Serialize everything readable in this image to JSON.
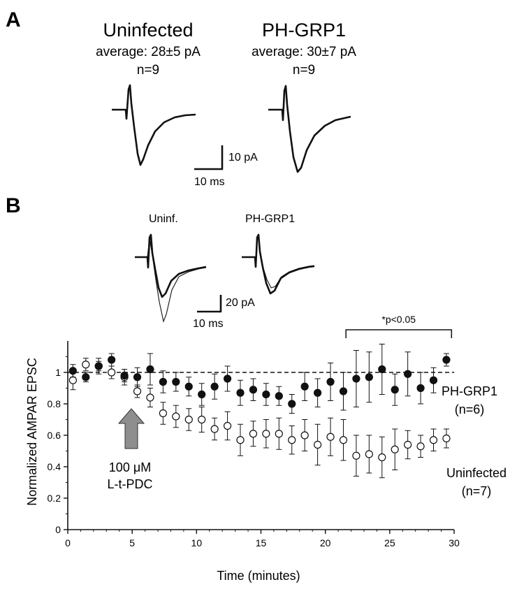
{
  "panel_a": {
    "letter": "A",
    "groups": [
      {
        "title": "Uninfected",
        "average": "average: 28±5 pA",
        "n": "n=9"
      },
      {
        "title": "PH-GRP1",
        "average": "average: 30±7 pA",
        "n": "n=9"
      }
    ],
    "scalebar": {
      "y_label": "10 pA",
      "x_label": "10 ms"
    }
  },
  "panel_b": {
    "letter": "B",
    "trace_labels": [
      "Uninf.",
      "PH-GRP1"
    ],
    "scalebar": {
      "y_label": "20 pA",
      "x_label": "10 ms"
    },
    "drug_label_line1": "100 μM",
    "drug_label_line2": "L-t-PDC",
    "significance": "*p<0.05"
  },
  "chart_data": {
    "type": "scatter",
    "xlabel": "Time (minutes)",
    "ylabel": "Normalized AMPAR EPSC",
    "xlim": [
      0,
      30
    ],
    "ylim": [
      0,
      1.2
    ],
    "xticks": [
      "0",
      "5",
      "10",
      "15",
      "20",
      "25",
      "30"
    ],
    "yticks": [
      "0",
      "0.2",
      "0.4",
      "0.6",
      "0.8",
      "1"
    ],
    "reference_line": 1,
    "significance_range": [
      21.6,
      29.8
    ],
    "series": [
      {
        "name": "PH-GRP1",
        "label_line1": "PH-GRP1",
        "label_line2": "(n=6)",
        "marker": "filled",
        "x": [
          0.4,
          1.4,
          2.4,
          3.4,
          4.4,
          5.4,
          6.4,
          7.4,
          8.4,
          9.4,
          10.4,
          11.4,
          12.4,
          13.4,
          14.4,
          15.4,
          16.4,
          17.4,
          18.4,
          19.4,
          20.4,
          21.4,
          22.4,
          23.4,
          24.4,
          25.4,
          26.4,
          27.4,
          28.4,
          29.4
        ],
        "y": [
          1.01,
          0.97,
          1.04,
          1.08,
          0.98,
          0.97,
          1.02,
          0.94,
          0.94,
          0.91,
          0.86,
          0.91,
          0.96,
          0.87,
          0.89,
          0.86,
          0.85,
          0.8,
          0.91,
          0.87,
          0.94,
          0.88,
          0.96,
          0.97,
          1.02,
          0.89,
          0.99,
          0.9,
          0.95,
          1.08
        ],
        "err": [
          0.04,
          0.03,
          0.03,
          0.04,
          0.04,
          0.06,
          0.1,
          0.07,
          0.06,
          0.06,
          0.07,
          0.08,
          0.08,
          0.08,
          0.07,
          0.07,
          0.06,
          0.06,
          0.09,
          0.09,
          0.12,
          0.12,
          0.18,
          0.16,
          0.16,
          0.1,
          0.14,
          0.1,
          0.08,
          0.04
        ]
      },
      {
        "name": "Uninfected",
        "label_line1": "Uninfected",
        "label_line2": "(n=7)",
        "marker": "open",
        "x": [
          0.4,
          1.4,
          2.4,
          3.4,
          4.4,
          5.4,
          6.4,
          7.4,
          8.4,
          9.4,
          10.4,
          11.4,
          12.4,
          13.4,
          14.4,
          15.4,
          16.4,
          17.4,
          18.4,
          19.4,
          20.4,
          21.4,
          22.4,
          23.4,
          24.4,
          25.4,
          26.4,
          27.4,
          28.4,
          29.4
        ],
        "y": [
          0.95,
          1.05,
          1.04,
          1.0,
          0.97,
          0.88,
          0.84,
          0.74,
          0.72,
          0.7,
          0.7,
          0.64,
          0.66,
          0.57,
          0.61,
          0.61,
          0.61,
          0.57,
          0.6,
          0.54,
          0.59,
          0.57,
          0.47,
          0.48,
          0.46,
          0.51,
          0.54,
          0.53,
          0.57,
          0.58
        ],
        "err": [
          0.06,
          0.04,
          0.05,
          0.04,
          0.05,
          0.04,
          0.06,
          0.07,
          0.07,
          0.07,
          0.08,
          0.07,
          0.09,
          0.1,
          0.08,
          0.09,
          0.1,
          0.09,
          0.1,
          0.13,
          0.12,
          0.13,
          0.13,
          0.12,
          0.13,
          0.13,
          0.09,
          0.07,
          0.07,
          0.06
        ]
      }
    ]
  }
}
